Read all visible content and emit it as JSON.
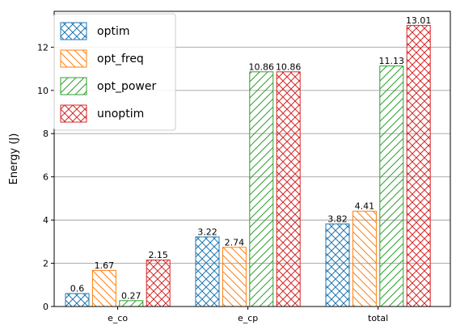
{
  "chart_data": {
    "type": "bar",
    "title": "",
    "xlabel": "",
    "ylabel": "Energy (J)",
    "categories": [
      "e_co",
      "e_cp",
      "total"
    ],
    "series": [
      {
        "name": "optim",
        "values": [
          0.6,
          3.22,
          3.82
        ],
        "labels": [
          "0.6",
          "3.22",
          "3.82"
        ],
        "color": "#1f77b4",
        "hatch": "cross"
      },
      {
        "name": "opt_freq",
        "values": [
          1.67,
          2.74,
          4.41
        ],
        "labels": [
          "1.67",
          "2.74",
          "4.41"
        ],
        "color": "#ff7f0e",
        "hatch": "backslash"
      },
      {
        "name": "opt_power",
        "values": [
          0.27,
          10.86,
          11.13
        ],
        "labels": [
          "0.27",
          "10.86",
          "11.13"
        ],
        "color": "#2ca02c",
        "hatch": "slash"
      },
      {
        "name": "unoptim",
        "values": [
          2.15,
          10.86,
          13.01
        ],
        "labels": [
          "2.15",
          "10.86",
          "13.01"
        ],
        "color": "#d62728",
        "hatch": "cross"
      }
    ],
    "ylim": [
      0,
      13.66
    ],
    "yticks": [
      0,
      2,
      4,
      6,
      8,
      10,
      12
    ],
    "grid": "y",
    "legend_position": "top-left"
  }
}
